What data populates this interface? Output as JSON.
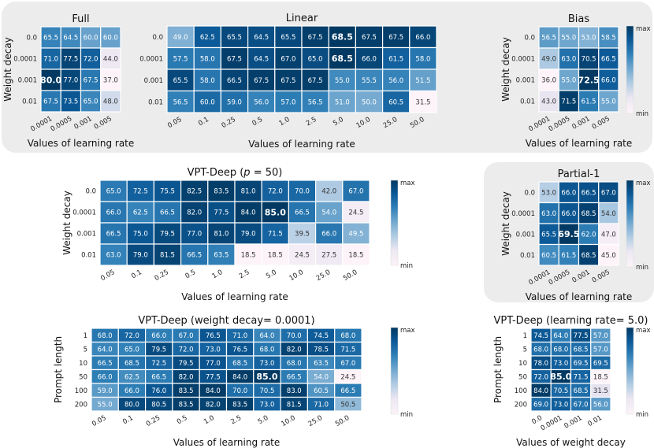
{
  "colors": {
    "min": "#fdf3f9",
    "max": "#023962",
    "bold_text": "#ffffff",
    "grid": "#ffffff"
  },
  "charts": [
    {
      "id": "full",
      "type": "heatmap",
      "title": "Full",
      "xlabel": "Values of learning rate",
      "ylabel": "Weight decay",
      "x": [
        "0.0001",
        "0.0005",
        "0.001",
        "0.005"
      ],
      "y": [
        "0.0",
        "0.0001",
        "0.001",
        "0.01"
      ],
      "values": [
        [
          65.5,
          64.5,
          60.0,
          60.0
        ],
        [
          71.0,
          77.5,
          72.0,
          44.0
        ],
        [
          80.0,
          77.0,
          67.5,
          37.0
        ],
        [
          67.5,
          73.5,
          65.0,
          48.0
        ]
      ],
      "bold": [
        [
          2,
          0
        ]
      ],
      "colorbar": null
    },
    {
      "id": "linear",
      "type": "heatmap",
      "title": "Linear",
      "xlabel": "Values of learning rate",
      "ylabel": "",
      "x": [
        "0.05",
        "0.1",
        "0.25",
        "0.5",
        "1.0",
        "2.5",
        "5.0",
        "10.0",
        "25.0",
        "50.0"
      ],
      "y": [
        "0.0",
        "0.0001",
        "0.001",
        "0.01"
      ],
      "values": [
        [
          49.0,
          62.5,
          65.5,
          64.5,
          65.5,
          67.5,
          68.5,
          67.5,
          67.5,
          66.0
        ],
        [
          57.5,
          58.0,
          67.5,
          64.5,
          67.0,
          65.0,
          68.5,
          66.0,
          61.5,
          58.0
        ],
        [
          65.5,
          58.0,
          66.5,
          67.5,
          67.5,
          67.5,
          55.0,
          55.5,
          56.0,
          51.5
        ],
        [
          56.5,
          60.0,
          59.0,
          56.0,
          57.0,
          56.5,
          51.0,
          50.0,
          60.5,
          31.5
        ]
      ],
      "bold": [
        [
          0,
          6
        ],
        [
          1,
          6
        ]
      ],
      "colorbar": null
    },
    {
      "id": "bias",
      "type": "heatmap",
      "title": "Bias",
      "xlabel": "Values of learning rate",
      "ylabel": "Weight decay",
      "x": [
        "0.0001",
        "0.0005",
        "0.001",
        "0.005"
      ],
      "y": [
        "0.0",
        "0.0001",
        "0.001",
        "0.01"
      ],
      "values": [
        [
          56.5,
          55.0,
          53.0,
          58.5
        ],
        [
          49.0,
          63.0,
          70.5,
          66.5
        ],
        [
          36.0,
          55.0,
          72.5,
          66.0
        ],
        [
          43.0,
          71.5,
          61.5,
          55.0
        ]
      ],
      "bold": [
        [
          2,
          2
        ]
      ],
      "colorbar": {
        "max_label": "max",
        "min_label": "min"
      }
    },
    {
      "id": "vpt-deep",
      "type": "heatmap",
      "title": "VPT-Deep (p = 50)",
      "title_parts": {
        "pre": "VPT-Deep (",
        "var": "p",
        "post": " = 50)"
      },
      "xlabel": "Values of learning rate",
      "ylabel": "Weight decay",
      "x": [
        "0.05",
        "0.1",
        "0.25",
        "0.5",
        "1.0",
        "2.5",
        "5.0",
        "10.0",
        "25.0",
        "50.0"
      ],
      "y": [
        "0.0",
        "0.0001",
        "0.001",
        "0.01"
      ],
      "values": [
        [
          65.0,
          72.5,
          75.5,
          82.5,
          83.5,
          81.0,
          72.0,
          70.0,
          42.0,
          67.0
        ],
        [
          66.0,
          62.5,
          66.5,
          82.0,
          77.5,
          84.0,
          85.0,
          66.5,
          54.0,
          24.5
        ],
        [
          66.5,
          75.0,
          79.5,
          77.0,
          81.0,
          79.0,
          71.5,
          39.5,
          66.0,
          49.5
        ],
        [
          63.0,
          79.0,
          81.5,
          66.5,
          63.5,
          18.5,
          18.5,
          24.5,
          27.5,
          18.5
        ]
      ],
      "bold": [
        [
          1,
          6
        ]
      ],
      "colorbar": {
        "max_label": "max",
        "min_label": "min"
      }
    },
    {
      "id": "partial-1",
      "type": "heatmap",
      "title": "Partial-1",
      "xlabel": "Values of learning rate",
      "ylabel": "Weight decay",
      "x": [
        "0.0001",
        "0.0005",
        "0.001",
        "0.005"
      ],
      "y": [
        "0.0",
        "0.0001",
        "0.001",
        "0.01"
      ],
      "values": [
        [
          53.0,
          66.0,
          66.5,
          67.0
        ],
        [
          63.0,
          66.0,
          68.5,
          54.0
        ],
        [
          65.5,
          69.5,
          62.0,
          47.0
        ],
        [
          60.5,
          61.5,
          68.5,
          45.0
        ]
      ],
      "bold": [
        [
          2,
          1
        ]
      ],
      "colorbar": {
        "max_label": "max",
        "min_label": "min"
      }
    },
    {
      "id": "vpt-deep-wd",
      "type": "heatmap",
      "title": "VPT-Deep (weight decay= 0.0001)",
      "xlabel": "Values of learning rate",
      "ylabel": "Prompt length",
      "x": [
        "0.05",
        "0.1",
        "0.25",
        "0.5",
        "1.0",
        "2.5",
        "5.0",
        "10.0",
        "25.0",
        "50.0"
      ],
      "y": [
        "1",
        "5",
        "10",
        "50",
        "100",
        "200"
      ],
      "values": [
        [
          68.0,
          72.0,
          66.0,
          67.0,
          76.5,
          71.0,
          64.0,
          70.0,
          74.5,
          68.0
        ],
        [
          64.0,
          65.0,
          79.5,
          72.0,
          73.0,
          76.5,
          68.0,
          82.0,
          78.5,
          71.5
        ],
        [
          66.5,
          68.5,
          72.5,
          79.5,
          77.0,
          68.5,
          73.0,
          68.0,
          63.5,
          67.0
        ],
        [
          66.0,
          62.5,
          66.5,
          82.0,
          77.5,
          84.0,
          85.0,
          66.5,
          54.0,
          24.5
        ],
        [
          59.0,
          66.0,
          76.0,
          83.5,
          84.0,
          70.0,
          70.5,
          83.0,
          60.5,
          66.5
        ],
        [
          55.0,
          80.0,
          80.5,
          83.5,
          82.0,
          83.5,
          73.0,
          81.5,
          71.0,
          50.5
        ]
      ],
      "bold": [
        [
          3,
          6
        ]
      ],
      "colorbar": {
        "max_label": "max",
        "min_label": "min"
      }
    },
    {
      "id": "vpt-deep-lr",
      "type": "heatmap",
      "title": "VPT-Deep (learning rate= 5.0)",
      "xlabel": "Values of weight decay",
      "ylabel": "Prompt length",
      "x": [
        "0.0",
        "0.0001",
        "0.001",
        "0.01"
      ],
      "y": [
        "1",
        "5",
        "10",
        "50",
        "100",
        "200"
      ],
      "values": [
        [
          74.5,
          64.0,
          77.5,
          57.0
        ],
        [
          68.0,
          68.0,
          68.5,
          57.0
        ],
        [
          78.0,
          73.0,
          69.5,
          69.5
        ],
        [
          72.0,
          85.0,
          71.5,
          18.5
        ],
        [
          84.0,
          70.5,
          68.5,
          31.5
        ],
        [
          69.0,
          73.0,
          67.0,
          56.0
        ]
      ],
      "bold": [
        [
          3,
          1
        ]
      ],
      "colorbar": {
        "max_label": "max",
        "min_label": "min"
      }
    }
  ]
}
